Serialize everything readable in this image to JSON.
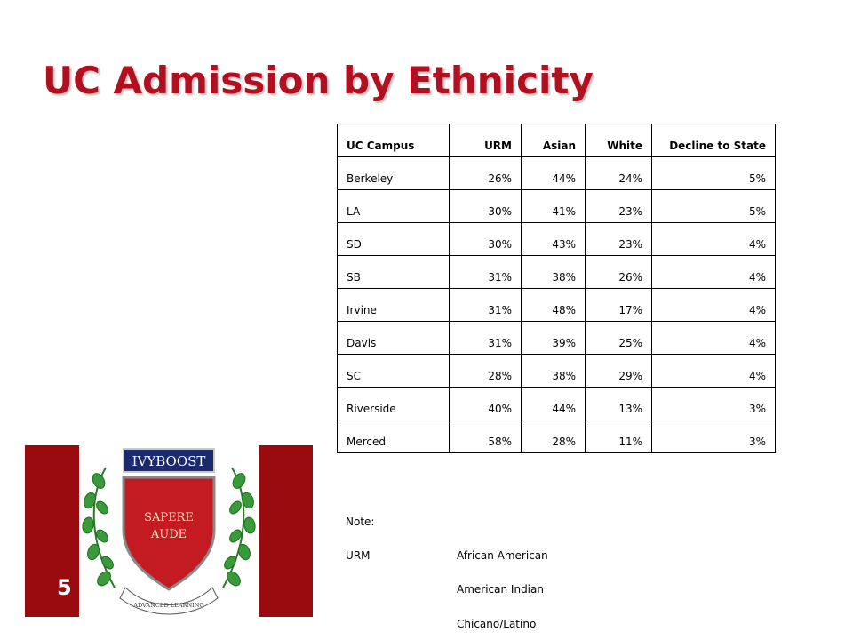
{
  "slide": {
    "title": "UC Admission by Ethnicity",
    "page_number": "5"
  },
  "logo": {
    "banner_text": "IVYBOOST",
    "shield_line1": "SAPERE",
    "shield_line2": "AUDE",
    "ribbon_text": "ADVANCED LEARNING",
    "colors": {
      "banner": "#1a2a6c",
      "shield": "#c41a22",
      "vine": "#2e8b2e",
      "brand_red": "#9a0b10"
    }
  },
  "table": {
    "headers": [
      "UC Campus",
      "URM",
      "Asian",
      "White",
      "Decline to State"
    ],
    "rows": [
      [
        "Berkeley",
        "26%",
        "44%",
        "24%",
        "5%"
      ],
      [
        "LA",
        "30%",
        "41%",
        "23%",
        "5%"
      ],
      [
        "SD",
        "30%",
        "43%",
        "23%",
        "4%"
      ],
      [
        "SB",
        "31%",
        "38%",
        "26%",
        "4%"
      ],
      [
        "Irvine",
        "31%",
        "48%",
        "17%",
        "4%"
      ],
      [
        "Davis",
        "31%",
        "39%",
        "25%",
        "4%"
      ],
      [
        "SC",
        "28%",
        "38%",
        "29%",
        "4%"
      ],
      [
        "Riverside",
        "40%",
        "44%",
        "13%",
        "3%"
      ],
      [
        "Merced",
        "58%",
        "28%",
        "11%",
        "3%"
      ]
    ]
  },
  "note": {
    "label": "Note:",
    "term": "URM",
    "definitions": [
      "African American",
      "American Indian",
      "Chicano/Latino"
    ]
  },
  "colors": {
    "title": "#b01020",
    "brand_red": "#9a0b10"
  }
}
